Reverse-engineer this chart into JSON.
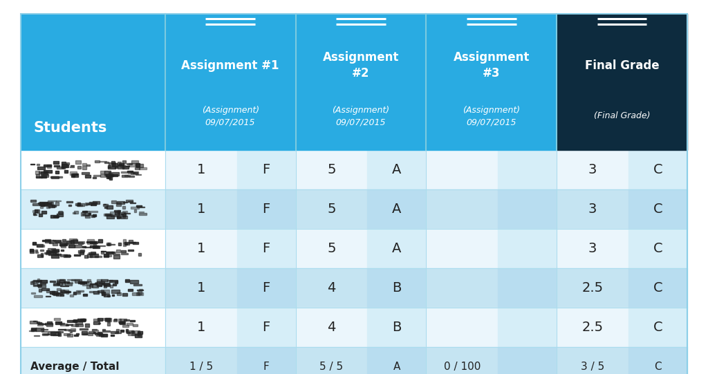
{
  "bg_color": "#ffffff",
  "header_blue": "#29ABE2",
  "header_dark": "#0D2B3E",
  "row_white": "#ffffff",
  "row_light": "#D6EEF8",
  "sub_white": "#f0f8fd",
  "sub_light": "#c8e8f4",
  "sep_color": "#8CCFE8",
  "text_white": "#ffffff",
  "text_dark": "#222222",
  "col_labels": [
    "Students",
    "Assignment #1",
    "Assignment\n#2",
    "Assignment\n#3",
    "Final Grade"
  ],
  "col_sublabels": [
    "",
    "(Assignment)\n09/07/2015",
    "(Assignment)\n09/07/2015",
    "(Assignment)\n09/07/2015",
    "(Final Grade)"
  ],
  "rows": [
    [
      "1",
      "F",
      "5",
      "A",
      "",
      "",
      "3",
      "C"
    ],
    [
      "1",
      "F",
      "5",
      "A",
      "",
      "",
      "3",
      "C"
    ],
    [
      "1",
      "F",
      "5",
      "A",
      "",
      "",
      "3",
      "C"
    ],
    [
      "1",
      "F",
      "4",
      "B",
      "",
      "",
      "2.5",
      "C"
    ],
    [
      "1",
      "F",
      "4",
      "B",
      "",
      "",
      "2.5",
      "C"
    ]
  ],
  "avg_row": [
    "1 / 5",
    "F",
    "5 / 5",
    "A",
    "0 / 100",
    "",
    "3 / 5",
    "C"
  ]
}
